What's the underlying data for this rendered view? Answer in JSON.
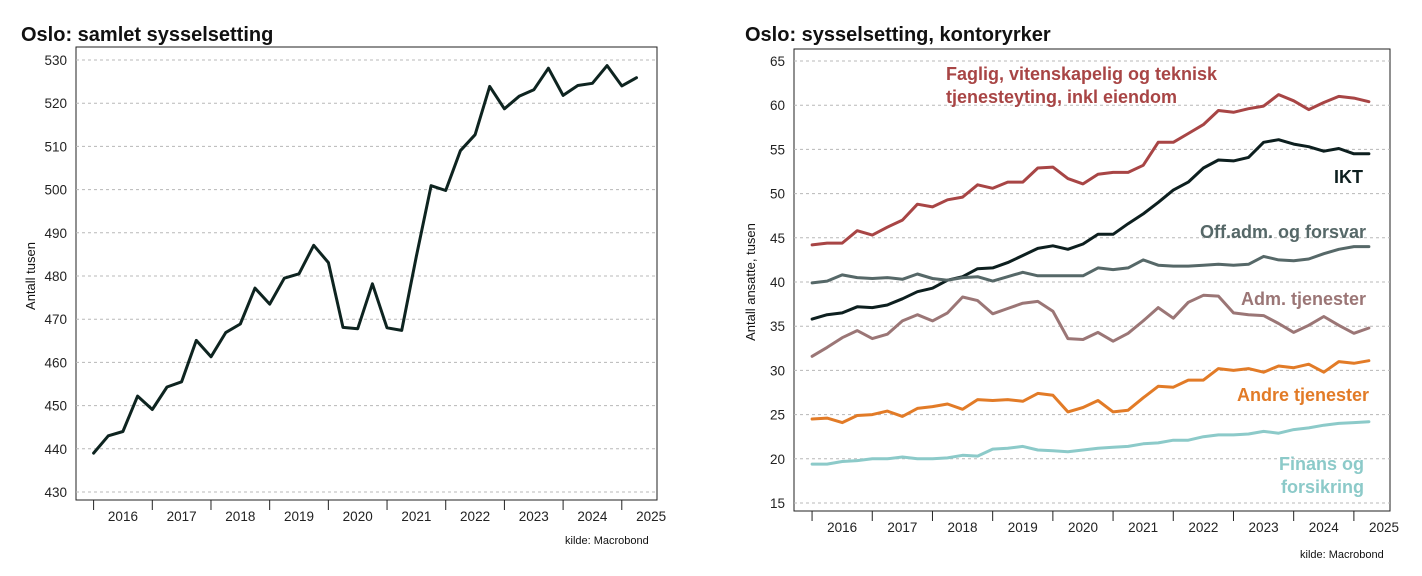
{
  "chart_data": [
    {
      "type": "line",
      "title": "Oslo: samlet sysselsetting",
      "ylabel": "Antall tusen",
      "xlabel": "",
      "source": "kilde: Macrobond",
      "ylim": [
        430,
        530
      ],
      "yticks": [
        430,
        440,
        450,
        460,
        470,
        480,
        490,
        500,
        510,
        520,
        530
      ],
      "xlim": [
        2015.7,
        2025.6
      ],
      "xticks": [
        "2016",
        "2017",
        "2018",
        "2019",
        "2020",
        "2021",
        "2022",
        "2023",
        "2024",
        "2025"
      ],
      "grid": "horizontal dashed",
      "series": [
        {
          "color": "#0e2420",
          "x": [
            2016.0,
            2016.25,
            2016.5,
            2016.75,
            2017.0,
            2017.25,
            2017.5,
            2017.75,
            2018.0,
            2018.25,
            2018.5,
            2018.75,
            2019.0,
            2019.25,
            2019.5,
            2019.75,
            2020.0,
            2020.25,
            2020.5,
            2020.75,
            2021.0,
            2021.25,
            2021.5,
            2021.75,
            2022.0,
            2022.25,
            2022.5,
            2022.75,
            2023.0,
            2023.25,
            2023.5,
            2023.75,
            2024.0,
            2024.25,
            2024.5,
            2024.75,
            2025.0,
            2025.25
          ],
          "values": [
            439,
            443,
            444,
            452.2,
            449.1,
            454.3,
            455.5,
            465.1,
            461.3,
            466.9,
            468.9,
            477.2,
            473.5,
            479.5,
            480.5,
            487.1,
            483.1,
            468.1,
            467.8,
            478.2,
            468.0,
            467.4,
            484.6,
            500.9,
            499.8,
            509.0,
            512.7,
            523.9,
            518.7,
            521.6,
            523.1,
            528.1,
            521.8,
            524.1,
            524.6,
            528.7,
            524.0,
            525.9
          ]
        }
      ]
    },
    {
      "type": "line",
      "title": "Oslo: sysselsetting, kontoryrker",
      "ylabel": "Antall ansatte, tusen",
      "xlabel": "",
      "source": "kilde: Macrobond",
      "ylim": [
        15,
        65
      ],
      "yticks": [
        15,
        20,
        25,
        30,
        35,
        40,
        45,
        50,
        55,
        60,
        65
      ],
      "xlim": [
        2015.7,
        2025.6
      ],
      "xticks": [
        "2016",
        "2017",
        "2018",
        "2019",
        "2020",
        "2021",
        "2022",
        "2023",
        "2024",
        "2025"
      ],
      "grid": "horizontal dashed",
      "x": [
        2016.0,
        2016.25,
        2016.5,
        2016.75,
        2017.0,
        2017.25,
        2017.5,
        2017.75,
        2018.0,
        2018.25,
        2018.5,
        2018.75,
        2019.0,
        2019.25,
        2019.5,
        2019.75,
        2020.0,
        2020.25,
        2020.5,
        2020.75,
        2021.0,
        2021.25,
        2021.5,
        2021.75,
        2022.0,
        2022.25,
        2022.5,
        2022.75,
        2023.0,
        2023.25,
        2023.5,
        2023.75,
        2024.0,
        2024.25,
        2024.5,
        2024.75,
        2025.0,
        2025.25
      ],
      "series": [
        {
          "name": "Faglig, vitenskapelig og teknisk tjenesteyting, inkl eiendom",
          "label_lines": [
            "Faglig, vitenskapelig og teknisk",
            "tjenesteyting, inkl eiendom"
          ],
          "color": "#a84545",
          "values": [
            44.2,
            44.4,
            44.4,
            45.8,
            45.3,
            46.2,
            47.0,
            48.8,
            48.5,
            49.3,
            49.6,
            51.0,
            50.6,
            51.3,
            51.3,
            52.9,
            53.0,
            51.7,
            51.1,
            52.2,
            52.4,
            52.4,
            53.2,
            55.8,
            55.8,
            56.8,
            57.8,
            59.4,
            59.2,
            59.6,
            59.9,
            61.2,
            60.5,
            59.5,
            60.3,
            61.0,
            60.8,
            60.4
          ]
        },
        {
          "name": "IKT",
          "label_lines": [
            "IKT"
          ],
          "color": "#0d1f1f",
          "values": [
            35.8,
            36.3,
            36.5,
            37.2,
            37.1,
            37.4,
            38.1,
            38.9,
            39.3,
            40.2,
            40.6,
            41.5,
            41.6,
            42.2,
            43.0,
            43.8,
            44.1,
            43.7,
            44.3,
            45.4,
            45.4,
            46.6,
            47.7,
            49.0,
            50.4,
            51.3,
            52.9,
            53.8,
            53.7,
            54.1,
            55.8,
            56.1,
            55.6,
            55.3,
            54.8,
            55.1,
            54.5,
            54.5
          ]
        },
        {
          "name": "Off.adm. og forsvar",
          "label_lines": [
            "Off.adm. og forsvar"
          ],
          "color": "#566868",
          "values": [
            39.9,
            40.1,
            40.8,
            40.5,
            40.4,
            40.5,
            40.3,
            40.9,
            40.4,
            40.2,
            40.5,
            40.6,
            40.1,
            40.6,
            41.1,
            40.7,
            40.7,
            40.7,
            40.7,
            41.6,
            41.4,
            41.6,
            42.5,
            41.9,
            41.8,
            41.8,
            41.9,
            42.0,
            41.9,
            42.0,
            42.9,
            42.5,
            42.4,
            42.6,
            43.2,
            43.7,
            44.0,
            44.0
          ]
        },
        {
          "name": "Adm. tjenester",
          "label_lines": [
            "Adm. tjenester"
          ],
          "color": "#9b7676",
          "values": [
            31.6,
            32.6,
            33.7,
            34.5,
            33.6,
            34.1,
            35.6,
            36.3,
            35.6,
            36.5,
            38.3,
            37.9,
            36.4,
            37.0,
            37.6,
            37.8,
            36.7,
            33.6,
            33.5,
            34.3,
            33.3,
            34.2,
            35.6,
            37.1,
            35.9,
            37.7,
            38.5,
            38.4,
            36.5,
            36.3,
            36.2,
            35.3,
            34.3,
            35.1,
            36.1,
            35.1,
            34.2,
            34.8
          ]
        },
        {
          "name": "Andre tjenester",
          "label_lines": [
            "Andre tjenester"
          ],
          "color": "#e27b27",
          "values": [
            24.5,
            24.6,
            24.1,
            24.9,
            25.0,
            25.4,
            24.8,
            25.7,
            25.9,
            26.2,
            25.6,
            26.7,
            26.6,
            26.7,
            26.5,
            27.4,
            27.2,
            25.3,
            25.8,
            26.6,
            25.3,
            25.5,
            26.9,
            28.2,
            28.1,
            28.9,
            28.9,
            30.2,
            30.0,
            30.2,
            29.8,
            30.5,
            30.3,
            30.7,
            29.8,
            31.0,
            30.8,
            31.1
          ]
        },
        {
          "name": "Finans og forsikring",
          "label_lines": [
            "Finans og",
            "forsikring"
          ],
          "color": "#8ccac9",
          "values": [
            19.4,
            19.4,
            19.7,
            19.8,
            20.0,
            20.0,
            20.2,
            20.0,
            20.0,
            20.1,
            20.4,
            20.3,
            21.1,
            21.2,
            21.4,
            21.0,
            20.9,
            20.8,
            21.0,
            21.2,
            21.3,
            21.4,
            21.7,
            21.8,
            22.1,
            22.1,
            22.5,
            22.7,
            22.7,
            22.8,
            23.1,
            22.9,
            23.3,
            23.5,
            23.8,
            24.0,
            24.1,
            24.2
          ]
        }
      ]
    }
  ]
}
